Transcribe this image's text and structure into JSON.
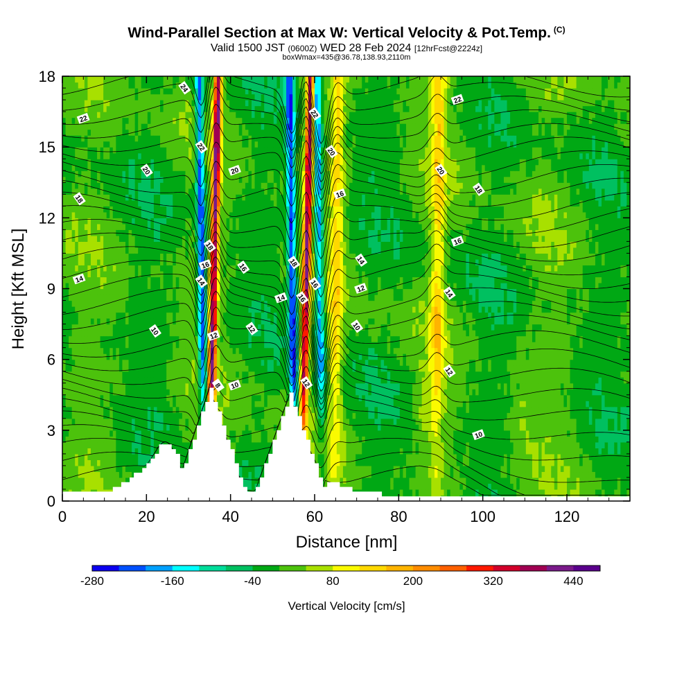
{
  "title": {
    "main": "Wind-Parallel Section at Max W: Vertical Velocity & Pot.Temp.",
    "copyright": "(C)",
    "valid_prefix": "Valid 1500 JST",
    "valid_utc": "(0600Z)",
    "valid_date": "WED 28 Feb 2024",
    "forecast": "[12hrFcst@2224z]",
    "box": "boxWmax=435@36.78,138.93,2110m"
  },
  "chart_data": {
    "type": "heatmap",
    "xlabel": "Distance [nm]",
    "ylabel": "Height [Kft MSL]",
    "xlim": [
      0,
      135
    ],
    "ylim": [
      0,
      18
    ],
    "x_ticks": [
      0,
      20,
      40,
      60,
      80,
      100,
      120
    ],
    "y_ticks": [
      0,
      3,
      6,
      9,
      12,
      15,
      18
    ],
    "colorbar": {
      "title": "Vertical Velocity [cm/s]",
      "levels": [
        -280,
        -240,
        -200,
        -160,
        -120,
        -80,
        -40,
        0,
        40,
        80,
        120,
        160,
        200,
        240,
        280,
        320,
        360,
        400,
        440,
        480
      ],
      "tick_labels": [
        "-280",
        "-160",
        "-40",
        "80",
        "200",
        "320",
        "440"
      ],
      "colors": [
        "#0b00f0",
        "#0050ff",
        "#00a0ff",
        "#00ffff",
        "#00dc9a",
        "#00c060",
        "#00a814",
        "#4cc20c",
        "#a8e000",
        "#fafa00",
        "#ffd800",
        "#ffb400",
        "#ff8c00",
        "#ff6000",
        "#ff1800",
        "#d2002a",
        "#a00052",
        "#7a1a8a",
        "#5a008c"
      ]
    },
    "updraft_columns": [
      {
        "x": 35.5,
        "peak_velocity": 400
      },
      {
        "x": 57.5,
        "peak_velocity": 380
      },
      {
        "x": 65.0,
        "peak_velocity": 120
      },
      {
        "x": 89.0,
        "peak_velocity": 120
      }
    ],
    "downdraft_columns": [
      {
        "x": 33.5,
        "min_velocity": -240
      },
      {
        "x": 55.0,
        "min_velocity": -240
      },
      {
        "x": 61.5,
        "min_velocity": -200
      }
    ],
    "terrain_peaks": [
      {
        "x": 35,
        "height_kft": 4.8
      },
      {
        "x": 54,
        "height_kft": 4.5
      }
    ],
    "pot_temp_contours": {
      "units": "C",
      "levels": [
        8,
        10,
        12,
        14,
        16,
        18,
        20,
        22,
        24
      ],
      "labels": [
        "22",
        "20",
        "18",
        "14",
        "24",
        "22",
        "20",
        "18",
        "16",
        "16",
        "14",
        "10",
        "12",
        "12",
        "8",
        "10",
        "22",
        "20",
        "16",
        "18",
        "16",
        "14",
        "16",
        "14",
        "12",
        "10",
        "12",
        "22",
        "20",
        "18",
        "16",
        "14",
        "12",
        "10"
      ]
    }
  }
}
